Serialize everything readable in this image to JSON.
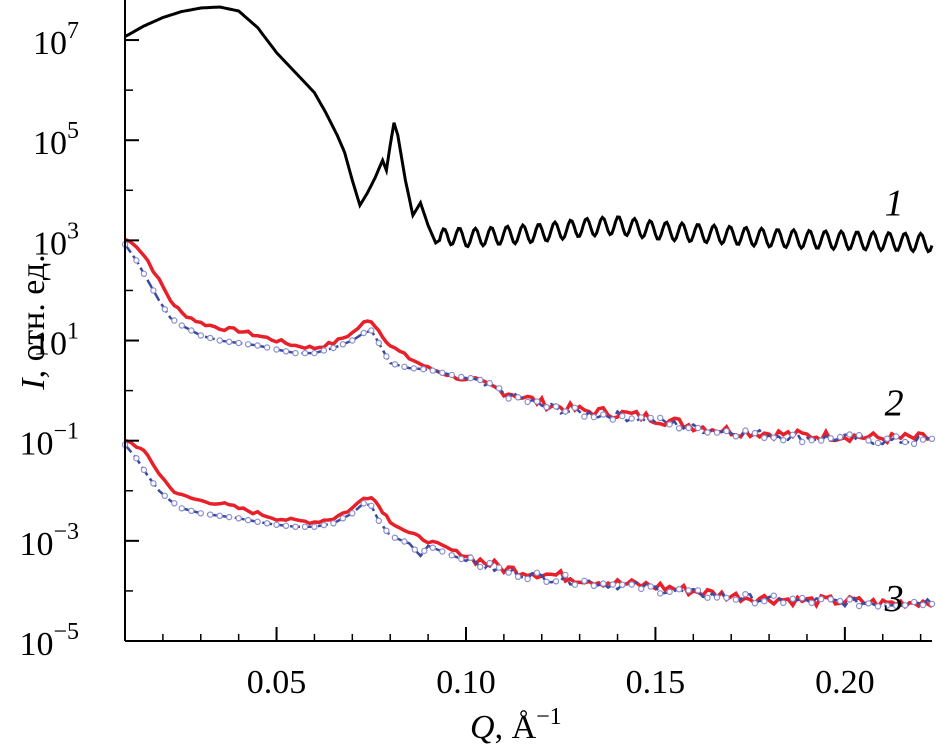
{
  "chart_data": {
    "type": "line",
    "xlabel_symbol": "Q",
    "xlabel_rest": ", Å",
    "xlabel_exp": "−1",
    "ylabel_symbol": "I",
    "ylabel_rest": ", отн. ед.",
    "xlim": [
      0.01,
      0.223
    ],
    "ylim_log10": [
      -5,
      7.8
    ],
    "yscale": "log",
    "grid": false,
    "x_ticks": [
      {
        "value": 0.05,
        "label": "0.05"
      },
      {
        "value": 0.1,
        "label": "0.10"
      },
      {
        "value": 0.15,
        "label": "0.15"
      },
      {
        "value": 0.2,
        "label": "0.20"
      }
    ],
    "y_ticks": [
      {
        "exp": 7,
        "base": "10",
        "sup": "7"
      },
      {
        "exp": 5,
        "base": "10",
        "sup": "5"
      },
      {
        "exp": 3,
        "base": "10",
        "sup": "3"
      },
      {
        "exp": 1,
        "base": "10",
        "sup": "1"
      },
      {
        "exp": -1,
        "base": "10",
        "sup": "−1"
      },
      {
        "exp": -3,
        "base": "10",
        "sup": "−3"
      },
      {
        "exp": -5,
        "base": "10",
        "sup": "−5"
      }
    ],
    "curve_labels": [
      {
        "text": "1",
        "x": 0.213,
        "log10y": 3.5
      },
      {
        "text": "2",
        "x": 0.213,
        "log10y": -0.5
      },
      {
        "text": "3",
        "x": 0.213,
        "log10y": -4.4
      }
    ],
    "colors": {
      "curve1": "#000000",
      "exp": "#e8202a",
      "fit": "#3a4aa0",
      "fit_marker": "#8a8fd0"
    },
    "series": [
      {
        "style": "black-line",
        "points": [
          [
            0.01,
            7.07
          ],
          [
            0.015,
            7.28
          ],
          [
            0.02,
            7.45
          ],
          [
            0.025,
            7.57
          ],
          [
            0.03,
            7.64
          ],
          [
            0.035,
            7.66
          ],
          [
            0.04,
            7.58
          ],
          [
            0.045,
            7.25
          ],
          [
            0.05,
            6.75
          ],
          [
            0.055,
            6.35
          ],
          [
            0.06,
            5.95
          ],
          [
            0.063,
            5.55
          ],
          [
            0.066,
            5.1
          ],
          [
            0.068,
            4.75
          ],
          [
            0.07,
            4.2
          ],
          [
            0.072,
            3.7
          ],
          [
            0.074,
            3.95
          ],
          [
            0.076,
            4.25
          ],
          [
            0.078,
            4.6
          ],
          [
            0.079,
            4.4
          ],
          [
            0.08,
            4.9
          ],
          [
            0.081,
            5.35
          ],
          [
            0.082,
            5.1
          ],
          [
            0.084,
            4.2
          ],
          [
            0.086,
            3.5
          ],
          [
            0.088,
            3.75
          ],
          [
            0.09,
            3.3
          ],
          [
            0.092,
            2.95
          ],
          [
            0.095,
            3.1
          ],
          [
            0.1,
            3.05
          ],
          [
            0.11,
            3.1
          ],
          [
            0.12,
            3.15
          ],
          [
            0.13,
            3.25
          ],
          [
            0.14,
            3.3
          ],
          [
            0.15,
            3.2
          ],
          [
            0.16,
            3.15
          ],
          [
            0.17,
            3.1
          ],
          [
            0.18,
            3.05
          ],
          [
            0.19,
            3.02
          ],
          [
            0.2,
            3.0
          ],
          [
            0.21,
            2.98
          ],
          [
            0.223,
            2.95
          ]
        ]
      },
      {
        "style": "red-line",
        "label": "2",
        "points": [
          [
            0.01,
            3.02
          ],
          [
            0.013,
            2.9
          ],
          [
            0.016,
            2.6
          ],
          [
            0.019,
            2.2
          ],
          [
            0.022,
            1.8
          ],
          [
            0.025,
            1.55
          ],
          [
            0.03,
            1.35
          ],
          [
            0.035,
            1.25
          ],
          [
            0.04,
            1.2
          ],
          [
            0.045,
            1.1
          ],
          [
            0.05,
            1.0
          ],
          [
            0.055,
            0.9
          ],
          [
            0.06,
            0.85
          ],
          [
            0.065,
            0.95
          ],
          [
            0.07,
            1.15
          ],
          [
            0.073,
            1.35
          ],
          [
            0.075,
            1.4
          ],
          [
            0.077,
            1.2
          ],
          [
            0.08,
            0.9
          ],
          [
            0.085,
            0.65
          ],
          [
            0.09,
            0.45
          ],
          [
            0.1,
            0.2
          ],
          [
            0.11,
            0.0
          ],
          [
            0.12,
            -0.25
          ],
          [
            0.13,
            -0.4
          ],
          [
            0.14,
            -0.45
          ],
          [
            0.15,
            -0.55
          ],
          [
            0.16,
            -0.7
          ],
          [
            0.17,
            -0.8
          ],
          [
            0.18,
            -0.85
          ],
          [
            0.19,
            -0.9
          ],
          [
            0.2,
            -0.9
          ],
          [
            0.21,
            -0.95
          ],
          [
            0.223,
            -0.95
          ]
        ]
      },
      {
        "style": "blue-fit",
        "label": "2",
        "points": [
          [
            0.01,
            2.92
          ],
          [
            0.013,
            2.6
          ],
          [
            0.016,
            2.2
          ],
          [
            0.019,
            1.8
          ],
          [
            0.022,
            1.45
          ],
          [
            0.025,
            1.3
          ],
          [
            0.03,
            1.1
          ],
          [
            0.035,
            1.0
          ],
          [
            0.04,
            0.95
          ],
          [
            0.045,
            0.9
          ],
          [
            0.05,
            0.82
          ],
          [
            0.055,
            0.75
          ],
          [
            0.06,
            0.75
          ],
          [
            0.065,
            0.85
          ],
          [
            0.07,
            1.0
          ],
          [
            0.073,
            1.15
          ],
          [
            0.075,
            1.2
          ],
          [
            0.077,
            0.95
          ],
          [
            0.08,
            0.55
          ],
          [
            0.085,
            0.45
          ],
          [
            0.09,
            0.42
          ],
          [
            0.1,
            0.25
          ],
          [
            0.11,
            -0.05
          ],
          [
            0.12,
            -0.3
          ],
          [
            0.13,
            -0.45
          ],
          [
            0.14,
            -0.5
          ],
          [
            0.15,
            -0.6
          ],
          [
            0.16,
            -0.75
          ],
          [
            0.17,
            -0.82
          ],
          [
            0.18,
            -0.88
          ],
          [
            0.19,
            -0.95
          ],
          [
            0.2,
            -0.95
          ],
          [
            0.21,
            -1.0
          ],
          [
            0.223,
            -1.0
          ]
        ]
      },
      {
        "style": "red-line",
        "label": "3",
        "points": [
          [
            0.01,
            -0.98
          ],
          [
            0.013,
            -1.1
          ],
          [
            0.016,
            -1.3
          ],
          [
            0.019,
            -1.65
          ],
          [
            0.022,
            -1.95
          ],
          [
            0.025,
            -2.1
          ],
          [
            0.03,
            -2.2
          ],
          [
            0.035,
            -2.25
          ],
          [
            0.04,
            -2.35
          ],
          [
            0.045,
            -2.45
          ],
          [
            0.05,
            -2.55
          ],
          [
            0.055,
            -2.6
          ],
          [
            0.06,
            -2.62
          ],
          [
            0.065,
            -2.55
          ],
          [
            0.07,
            -2.35
          ],
          [
            0.073,
            -2.15
          ],
          [
            0.075,
            -2.1
          ],
          [
            0.077,
            -2.3
          ],
          [
            0.08,
            -2.6
          ],
          [
            0.085,
            -2.85
          ],
          [
            0.09,
            -3.0
          ],
          [
            0.1,
            -3.3
          ],
          [
            0.11,
            -3.55
          ],
          [
            0.12,
            -3.65
          ],
          [
            0.13,
            -3.75
          ],
          [
            0.14,
            -3.85
          ],
          [
            0.15,
            -3.9
          ],
          [
            0.16,
            -4.0
          ],
          [
            0.17,
            -4.1
          ],
          [
            0.18,
            -4.15
          ],
          [
            0.19,
            -4.2
          ],
          [
            0.2,
            -4.2
          ],
          [
            0.21,
            -4.25
          ],
          [
            0.223,
            -4.2
          ]
        ]
      },
      {
        "style": "blue-fit",
        "label": "3",
        "points": [
          [
            0.01,
            -1.08
          ],
          [
            0.013,
            -1.35
          ],
          [
            0.016,
            -1.7
          ],
          [
            0.019,
            -2.0
          ],
          [
            0.022,
            -2.2
          ],
          [
            0.025,
            -2.35
          ],
          [
            0.03,
            -2.45
          ],
          [
            0.035,
            -2.5
          ],
          [
            0.04,
            -2.55
          ],
          [
            0.045,
            -2.62
          ],
          [
            0.05,
            -2.68
          ],
          [
            0.055,
            -2.72
          ],
          [
            0.06,
            -2.72
          ],
          [
            0.065,
            -2.65
          ],
          [
            0.07,
            -2.45
          ],
          [
            0.073,
            -2.25
          ],
          [
            0.075,
            -2.3
          ],
          [
            0.077,
            -2.6
          ],
          [
            0.08,
            -2.9
          ],
          [
            0.085,
            -3.05
          ],
          [
            0.088,
            -3.3
          ],
          [
            0.09,
            -3.1
          ],
          [
            0.1,
            -3.4
          ],
          [
            0.11,
            -3.6
          ],
          [
            0.12,
            -3.72
          ],
          [
            0.13,
            -3.8
          ],
          [
            0.14,
            -3.88
          ],
          [
            0.15,
            -3.95
          ],
          [
            0.16,
            -4.05
          ],
          [
            0.17,
            -4.12
          ],
          [
            0.18,
            -4.18
          ],
          [
            0.19,
            -4.2
          ],
          [
            0.2,
            -4.22
          ],
          [
            0.21,
            -4.25
          ],
          [
            0.223,
            -4.2
          ]
        ]
      }
    ]
  }
}
